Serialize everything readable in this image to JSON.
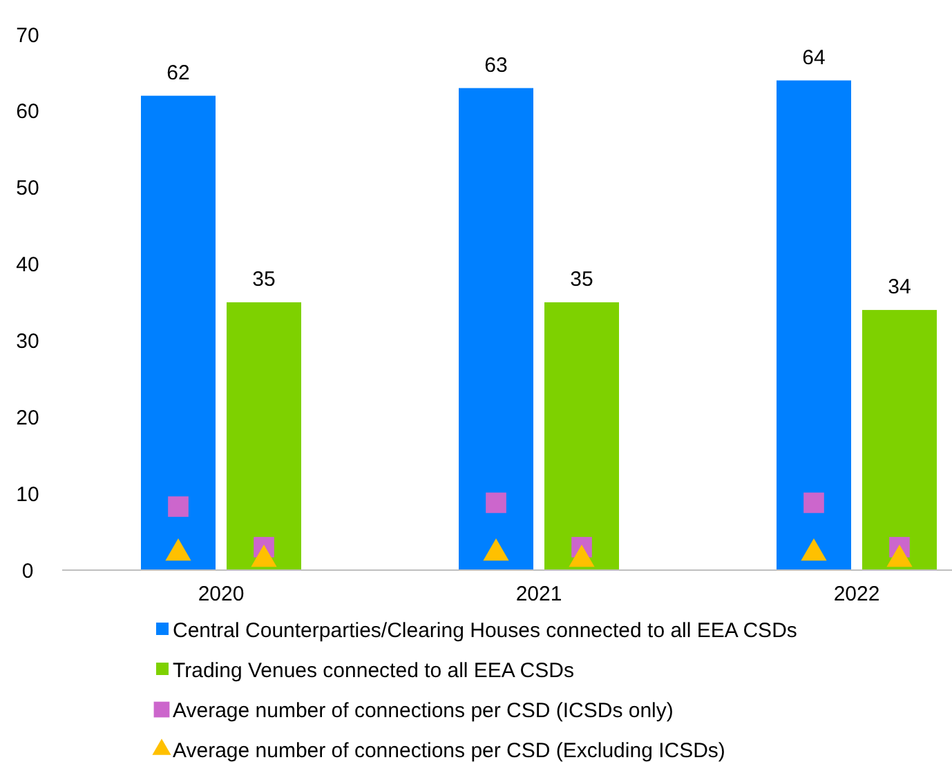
{
  "chart_data": {
    "type": "bar",
    "categories": [
      "2020",
      "2021",
      "2022"
    ],
    "ylim": [
      0,
      70
    ],
    "yticks": [
      0,
      10,
      20,
      30,
      40,
      50,
      60,
      70
    ],
    "grid": false,
    "legend": "bottom",
    "series": [
      {
        "name": "Central Counterparties/Clearing Houses connected to all EEA CSDs",
        "color": "#0080ff",
        "values": [
          62,
          63,
          64
        ],
        "value_labels": [
          "62",
          "63",
          "64"
        ]
      },
      {
        "name": "Trading Venues connected to all EEA CSDs",
        "color": "#7ed100",
        "values": [
          35,
          35,
          34
        ],
        "value_labels": [
          "35",
          "35",
          "34"
        ]
      },
      {
        "name": "Average number of connections per CSD (ICSDs only)",
        "type": "scatter",
        "marker": "square",
        "color": "#cc66cc",
        "values": [
          8.3,
          8.8,
          8.8
        ]
      },
      {
        "name": "Average number of connections per CSD (Excluding ICSDs)",
        "type": "scatter",
        "marker": "triangle",
        "color": "#ffc000",
        "values": [
          2.2,
          2.2,
          2.2
        ]
      },
      {
        "type": "scatter",
        "marker": "square",
        "color": "#cc66cc",
        "values": [
          3,
          3,
          3
        ]
      },
      {
        "type": "scatter",
        "marker": "triangle",
        "color": "#ffc000",
        "values": [
          1.4,
          1.4,
          1.4
        ]
      }
    ]
  }
}
